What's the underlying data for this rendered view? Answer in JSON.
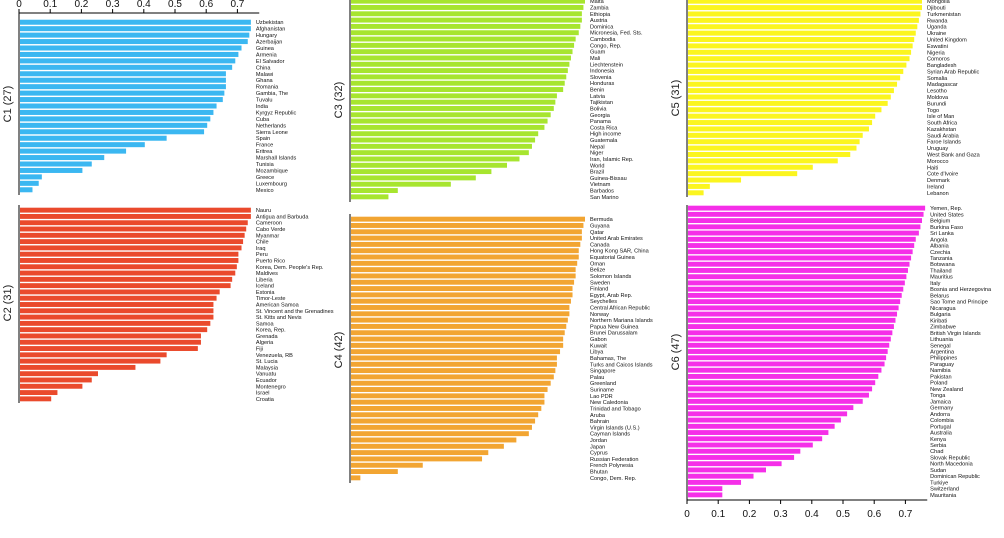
{
  "chart_data": [
    {
      "type": "bar",
      "orientation": "horizontal",
      "cluster_label": "C1 (27)",
      "color": "#3BB7F1",
      "xlim": [
        0,
        0.77
      ],
      "xticks": [
        "0",
        "0.1",
        "0.2",
        "0.3",
        "0.4",
        "0.5",
        "0.6",
        "0.7"
      ],
      "xtick_values": [
        0,
        0.1,
        0.2,
        0.3,
        0.4,
        0.5,
        0.6,
        0.7
      ],
      "xaxis_position": "top",
      "categories": [
        "Uzbekistan",
        "Afghanistan",
        "Hungary",
        "Azerbaijan",
        "Guinea",
        "Armenia",
        "El Salvador",
        "China",
        "Malawi",
        "Ghana",
        "Romania",
        "Gambia, The",
        "Tuvalu",
        "India",
        "Kyrgyz Republic",
        "Cuba",
        "Netherlands",
        "Sierra Leone",
        "Spain",
        "France",
        "Eritrea",
        "Marshall Islands",
        "Tunisia",
        "Mozambique",
        "Greece",
        "Luxembourg",
        "Mexico"
      ],
      "values": [
        0.74,
        0.74,
        0.735,
        0.73,
        0.71,
        0.7,
        0.69,
        0.68,
        0.66,
        0.66,
        0.66,
        0.655,
        0.65,
        0.63,
        0.62,
        0.61,
        0.6,
        0.59,
        0.47,
        0.4,
        0.34,
        0.27,
        0.23,
        0.2,
        0.07,
        0.06,
        0.04
      ]
    },
    {
      "type": "bar",
      "orientation": "horizontal",
      "cluster_label": "C2 (31)",
      "color": "#EA4A2C",
      "xlim": [
        0,
        0.77
      ],
      "categories": [
        "Nauru",
        "Antigua and Barbuda",
        "Cameroon",
        "Cabo Verde",
        "Myanmar",
        "Chile",
        "Iraq",
        "Peru",
        "Puerto Rico",
        "Korea, Dem. People's Rep.",
        "Maldives",
        "Liberia",
        "Iceland",
        "Estonia",
        "Timor-Leste",
        "American Samoa",
        "St. Vincent and the Grenadines",
        "St. Kitts and Nevis",
        "Samoa",
        "Korea, Rep.",
        "Grenada",
        "Algeria",
        "Fiji",
        "Venezuela, RB",
        "St. Lucia",
        "Malaysia",
        "Vanuatu",
        "Ecuador",
        "Montenegro",
        "Israel",
        "Croatia"
      ],
      "values": [
        0.74,
        0.74,
        0.73,
        0.725,
        0.72,
        0.715,
        0.71,
        0.7,
        0.7,
        0.695,
        0.69,
        0.68,
        0.675,
        0.64,
        0.63,
        0.62,
        0.62,
        0.62,
        0.61,
        0.6,
        0.58,
        0.58,
        0.57,
        0.47,
        0.45,
        0.37,
        0.25,
        0.23,
        0.2,
        0.12,
        0.1
      ]
    },
    {
      "type": "bar",
      "orientation": "horizontal",
      "cluster_label": "C3 (32)",
      "color": "#A7E52F",
      "xlim": [
        0,
        0.77
      ],
      "categories": [
        "Malta",
        "Zambia",
        "Ethiopia",
        "Austria",
        "Dominica",
        "Micronesia, Fed. Sts.",
        "Cambodia",
        "Congo, Rep.",
        "Guam",
        "Mali",
        "Liechtenstein",
        "Indonesia",
        "Slovenia",
        "Honduras",
        "Benin",
        "Latvia",
        "Tajikistan",
        "Bolivia",
        "Georgia",
        "Panama",
        "Costa Rica",
        "High income",
        "Guatemala",
        "Nepal",
        "Niger",
        "Iran, Islamic Rep.",
        "World",
        "Brazil",
        "Guinea-Bissau",
        "Vietnam",
        "Barbados",
        "San Marino"
      ],
      "values": [
        0.75,
        0.745,
        0.74,
        0.74,
        0.735,
        0.73,
        0.72,
        0.715,
        0.71,
        0.705,
        0.7,
        0.695,
        0.69,
        0.685,
        0.68,
        0.66,
        0.655,
        0.65,
        0.64,
        0.63,
        0.62,
        0.6,
        0.59,
        0.58,
        0.57,
        0.54,
        0.5,
        0.45,
        0.4,
        0.32,
        0.15,
        0.12
      ]
    },
    {
      "type": "bar",
      "orientation": "horizontal",
      "cluster_label": "C4 (42)",
      "color": "#F2A532",
      "xlim": [
        0,
        0.77
      ],
      "categories": [
        "Bermuda",
        "Guyana",
        "Qatar",
        "United Arab Emirates",
        "Canada",
        "Hong Kong SAR, China",
        "Equatorial Guinea",
        "Oman",
        "Belize",
        "Solomon Islands",
        "Sweden",
        "Finland",
        "Egypt, Arab Rep.",
        "Seychelles",
        "Central African Republic",
        "Norway",
        "Northern Mariana Islands",
        "Papua New Guinea",
        "Brunei Darussalam",
        "Gabon",
        "Kuwait",
        "Libya",
        "Bahamas, The",
        "Turks and Caicos Islands",
        "Singapore",
        "Palau",
        "Greenland",
        "Suriname",
        "Lao PDR",
        "New Caledonia",
        "Trinidad and Tobago",
        "Aruba",
        "Bahrain",
        "Virgin Islands (U.S.)",
        "Cayman Islands",
        "Jordan",
        "Japan",
        "Cyprus",
        "Russian Federation",
        "French Polynesia",
        "Bhutan",
        "Congo, Dem. Rep."
      ],
      "values": [
        0.75,
        0.745,
        0.74,
        0.74,
        0.735,
        0.73,
        0.73,
        0.725,
        0.72,
        0.72,
        0.715,
        0.71,
        0.71,
        0.705,
        0.7,
        0.7,
        0.695,
        0.69,
        0.685,
        0.68,
        0.68,
        0.67,
        0.66,
        0.66,
        0.655,
        0.65,
        0.64,
        0.63,
        0.62,
        0.62,
        0.61,
        0.6,
        0.59,
        0.58,
        0.57,
        0.53,
        0.49,
        0.44,
        0.42,
        0.23,
        0.15,
        0.03
      ]
    },
    {
      "type": "bar",
      "orientation": "horizontal",
      "cluster_label": "C5 (31)",
      "color": "#FBF51F",
      "xlim": [
        0,
        0.77
      ],
      "categories": [
        "Mongolia",
        "Djibouti",
        "Turkmenistan",
        "Rwanda",
        "Uganda",
        "Ukraine",
        "United Kingdom",
        "Eswatini",
        "Nigeria",
        "Comoros",
        "Bangladesh",
        "Syrian Arab Republic",
        "Somalia",
        "Madagascar",
        "Lesotho",
        "Moldova",
        "Burundi",
        "Togo",
        "Isle of Man",
        "South Africa",
        "Kazakhstan",
        "Saudi Arabia",
        "Faroe Islands",
        "Uruguay",
        "West Bank and Gaza",
        "Morocco",
        "Haiti",
        "Cote d'Ivoire",
        "Denmark",
        "Ireland",
        "Lebanon"
      ],
      "values": [
        0.75,
        0.75,
        0.745,
        0.74,
        0.735,
        0.73,
        0.725,
        0.72,
        0.715,
        0.71,
        0.7,
        0.69,
        0.68,
        0.67,
        0.66,
        0.65,
        0.64,
        0.62,
        0.6,
        0.59,
        0.58,
        0.56,
        0.55,
        0.54,
        0.52,
        0.48,
        0.4,
        0.35,
        0.17,
        0.07,
        0.05
      ]
    },
    {
      "type": "bar",
      "orientation": "horizontal",
      "cluster_label": "C6 (47)",
      "color": "#F52FE8",
      "xlim": [
        0,
        0.77
      ],
      "xticks": [
        "0",
        "0.1",
        "0.2",
        "0.3",
        "0.4",
        "0.5",
        "0.6",
        "0.7"
      ],
      "xtick_values": [
        0,
        0.1,
        0.2,
        0.3,
        0.4,
        0.5,
        0.6,
        0.7
      ],
      "xaxis_position": "bottom",
      "categories": [
        "Yemen, Rep.",
        "United States",
        "Belgium",
        "Burkina Faso",
        "Sri Lanka",
        "Angola",
        "Albania",
        "Czechia",
        "Tanzania",
        "Botswana",
        "Thailand",
        "Mauritius",
        "Italy",
        "Bosnia and Herzegovina",
        "Belarus",
        "Sao Tome and Principe",
        "Nicaragua",
        "Bulgaria",
        "Kiribati",
        "Zimbabwe",
        "British Virgin Islands",
        "Lithuania",
        "Senegal",
        "Argentina",
        "Philippines",
        "Paraguay",
        "Namibia",
        "Pakistan",
        "Poland",
        "New Zealand",
        "Tonga",
        "Jamaica",
        "Germany",
        "Andorra",
        "Colombia",
        "Portugal",
        "Australia",
        "Kenya",
        "Serbia",
        "Chad",
        "Slovak Republic",
        "North Macedonia",
        "Sudan",
        "Dominican Republic",
        "Turkiye",
        "Switzerland",
        "Mauritania"
      ],
      "values": [
        0.76,
        0.755,
        0.75,
        0.745,
        0.74,
        0.73,
        0.725,
        0.72,
        0.715,
        0.71,
        0.705,
        0.7,
        0.695,
        0.69,
        0.685,
        0.68,
        0.675,
        0.67,
        0.665,
        0.66,
        0.655,
        0.65,
        0.645,
        0.64,
        0.635,
        0.63,
        0.62,
        0.61,
        0.6,
        0.59,
        0.58,
        0.56,
        0.53,
        0.51,
        0.49,
        0.47,
        0.45,
        0.43,
        0.4,
        0.36,
        0.34,
        0.3,
        0.25,
        0.21,
        0.17,
        0.11,
        0.11
      ]
    }
  ]
}
